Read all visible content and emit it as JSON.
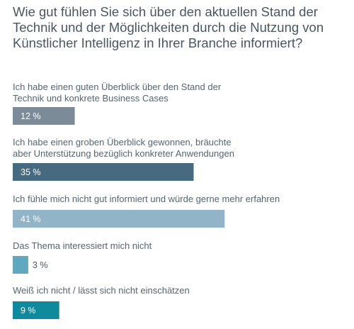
{
  "chart_data": {
    "type": "bar",
    "orientation": "horizontal",
    "title": "Wie gut fühlen Sie sich über den aktuellen Stand der Technik und der Möglichkeiten durch die Nutzung von Künstlicher Intelligenz in Ihrer Branche informiert?",
    "value_suffix": " %",
    "xlim": [
      0,
      100
    ],
    "grid": false,
    "legend": "none",
    "items": [
      {
        "label_lines": [
          "Ich habe einen guten Überblick über den Stand der",
          "Technik und konkrete Business Cases"
        ],
        "value": 12,
        "color": "#7b8b97"
      },
      {
        "label_lines": [
          "Ich habe einen groben Überblick gewonnen, bräuchte",
          "aber Unterstützung bezüglich konkreter Anwendungen"
        ],
        "value": 35,
        "color": "#466a80"
      },
      {
        "label_lines": [
          "Ich fühle mich nicht gut informiert und würde gerne mehr erfahren"
        ],
        "value": 41,
        "color": "#92b4c9"
      },
      {
        "label_lines": [
          "Das Thema interessiert mich nicht"
        ],
        "value": 3,
        "color": "#5fa8bf"
      },
      {
        "label_lines": [
          "Weiß ich nicht / lässt sich nicht einschätzen"
        ],
        "value": 9,
        "color": "#0f8a9c"
      }
    ]
  }
}
